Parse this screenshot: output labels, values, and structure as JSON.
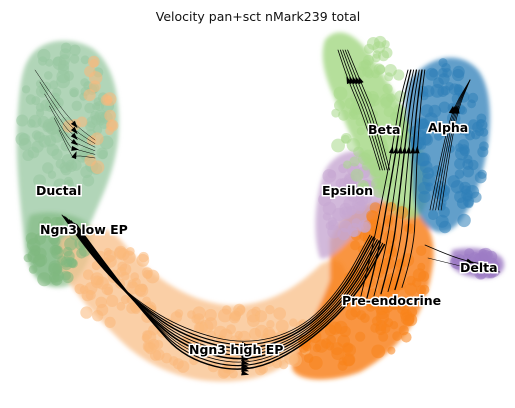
{
  "chart_data": {
    "type": "scatter",
    "subtype": "umap-velocity-streamlines",
    "title": "Velocity pan+sct nMark239 total",
    "axes_visible": false,
    "grid": false,
    "legend": "on-data",
    "clusters": [
      {
        "name": "Ductal",
        "color": "#97c7a0"
      },
      {
        "name": "Ngn3 low EP",
        "color": "#7fb87f"
      },
      {
        "name": "Ngn3 high EP",
        "color": "#f9b87a"
      },
      {
        "name": "Pre-endocrine",
        "color": "#f8831c"
      },
      {
        "name": "Epsilon",
        "color": "#c7a8d2"
      },
      {
        "name": "Beta",
        "color": "#a8d98a"
      },
      {
        "name": "Alpha",
        "color": "#2f7fb8"
      },
      {
        "name": "Delta",
        "color": "#9d7bc4"
      }
    ]
  }
}
